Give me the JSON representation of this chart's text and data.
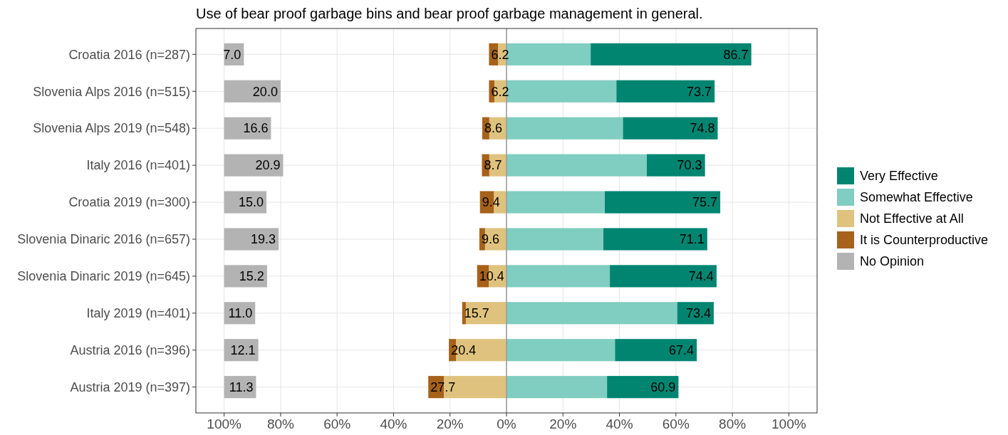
{
  "chart_data": {
    "type": "bar",
    "orientation": "horizontal",
    "title": "Use of bear proof garbage bins and bear proof garbage management in general.",
    "categories": [
      "Croatia 2016 (n=287)",
      "Slovenia Alps 2016 (n=515)",
      "Slovenia Alps 2019 (n=548)",
      "Italy 2016 (n=401)",
      "Croatia 2019 (n=300)",
      "Slovenia Dinaric 2016 (n=657)",
      "Slovenia Dinaric 2019 (n=645)",
      "Italy 2019 (n=401)",
      "Austria 2016 (n=396)",
      "Austria 2019 (n=397)"
    ],
    "series": [
      {
        "name": "Very Effective",
        "color": "#018571",
        "base": [
          29.8,
          38.9,
          41.2,
          49.7,
          34.8,
          34.3,
          36.6,
          60.4,
          38.4,
          35.6
        ],
        "values": [
          56.9,
          34.8,
          33.6,
          20.6,
          40.9,
          36.8,
          37.8,
          13.0,
          29.0,
          25.3
        ]
      },
      {
        "name": "Somewhat Effective",
        "color": "#80cdc1",
        "base": [
          0,
          0,
          0,
          0,
          0,
          0,
          0,
          0,
          0,
          0
        ],
        "values": [
          29.8,
          38.9,
          41.2,
          49.7,
          34.8,
          34.3,
          36.6,
          60.4,
          38.4,
          35.6
        ]
      },
      {
        "name": "Not Effective at All",
        "color": "#dfc27d",
        "base": [
          0,
          0,
          0,
          0,
          0,
          0,
          0,
          0,
          0,
          0
        ],
        "values": [
          -3.0,
          -4.3,
          -6.1,
          -6.1,
          -4.5,
          -7.6,
          -6.3,
          -14.4,
          -17.9,
          -22.2
        ]
      },
      {
        "name": "It is Counterproductive",
        "color": "#a6611a",
        "base": [
          -3.0,
          -4.3,
          -6.1,
          -6.1,
          -4.5,
          -7.6,
          -6.3,
          -14.4,
          -17.9,
          -22.2
        ],
        "values": [
          -3.2,
          -1.9,
          -2.5,
          -2.6,
          -4.9,
          -2.0,
          -4.1,
          -1.3,
          -2.5,
          -5.5
        ]
      },
      {
        "name": "No Opinion",
        "color": "#b3b3b3",
        "base": [
          -100,
          -100,
          -100,
          -100,
          -100,
          -100,
          -100,
          -100,
          -100,
          -100
        ],
        "values": [
          7.0,
          20.0,
          16.6,
          20.9,
          15.0,
          19.3,
          15.2,
          11.0,
          12.1,
          11.3
        ],
        "value_labels": [
          "7.0",
          "20.0",
          "16.6",
          "20.9",
          "15.0",
          "19.3",
          "15.2",
          "11.0",
          "12.1",
          "11.3"
        ]
      }
    ],
    "annotations": [
      {
        "text": "86.7",
        "x": 86.7,
        "y": "Croatia 2016 (n=287)"
      },
      {
        "text": "73.7",
        "x": 73.7,
        "y": "Slovenia Alps 2016 (n=515)"
      },
      {
        "text": "74.8",
        "x": 74.8,
        "y": "Slovenia Alps 2019 (n=548)"
      },
      {
        "text": "70.3",
        "x": 70.3,
        "y": "Italy 2016 (n=401)"
      },
      {
        "text": "75.7",
        "x": 75.7,
        "y": "Croatia 2019 (n=300)"
      },
      {
        "text": "71.1",
        "x": 71.1,
        "y": "Slovenia Dinaric 2016 (n=657)"
      },
      {
        "text": "74.4",
        "x": 74.4,
        "y": "Slovenia Dinaric 2019 (n=645)"
      },
      {
        "text": "73.4",
        "x": 73.4,
        "y": "Italy 2019 (n=401)"
      },
      {
        "text": "67.4",
        "x": 67.4,
        "y": "Austria 2016 (n=396)"
      },
      {
        "text": "60.9",
        "x": 60.9,
        "y": "Austria 2019 (n=397)"
      },
      {
        "text": "6.2",
        "x": -6.2,
        "y": "Croatia 2016 (n=287)"
      },
      {
        "text": "6.2",
        "x": -6.2,
        "y": "Slovenia Alps 2016 (n=515)"
      },
      {
        "text": "8.6",
        "x": -8.6,
        "y": "Slovenia Alps 2019 (n=548)"
      },
      {
        "text": "8.7",
        "x": -8.7,
        "y": "Italy 2016 (n=401)"
      },
      {
        "text": "9.4",
        "x": -9.4,
        "y": "Croatia 2019 (n=300)"
      },
      {
        "text": "9.6",
        "x": -9.6,
        "y": "Slovenia Dinaric 2016 (n=657)"
      },
      {
        "text": "10.4",
        "x": -10.4,
        "y": "Slovenia Dinaric 2019 (n=645)"
      },
      {
        "text": "15.7",
        "x": -15.7,
        "y": "Italy 2019 (n=401)"
      },
      {
        "text": "20.4",
        "x": -20.4,
        "y": "Austria 2016 (n=396)"
      },
      {
        "text": "27.7",
        "x": -27.7,
        "y": "Austria 2019 (n=397)"
      }
    ],
    "xlim": [
      -110,
      110
    ],
    "xticks": [
      {
        "value": -100,
        "label": "100%"
      },
      {
        "value": -80,
        "label": "80%"
      },
      {
        "value": -60,
        "label": "60%"
      },
      {
        "value": -40,
        "label": "40%"
      },
      {
        "value": -20,
        "label": "20%"
      },
      {
        "value": 0,
        "label": "0%"
      },
      {
        "value": 20,
        "label": "20%"
      },
      {
        "value": 40,
        "label": "40%"
      },
      {
        "value": 60,
        "label": "60%"
      },
      {
        "value": 80,
        "label": "80%"
      },
      {
        "value": 100,
        "label": "100%"
      }
    ],
    "ref_lines": [
      {
        "axis": "x",
        "value": 0,
        "color": "#999999"
      }
    ],
    "grid": true,
    "legend": "right"
  }
}
